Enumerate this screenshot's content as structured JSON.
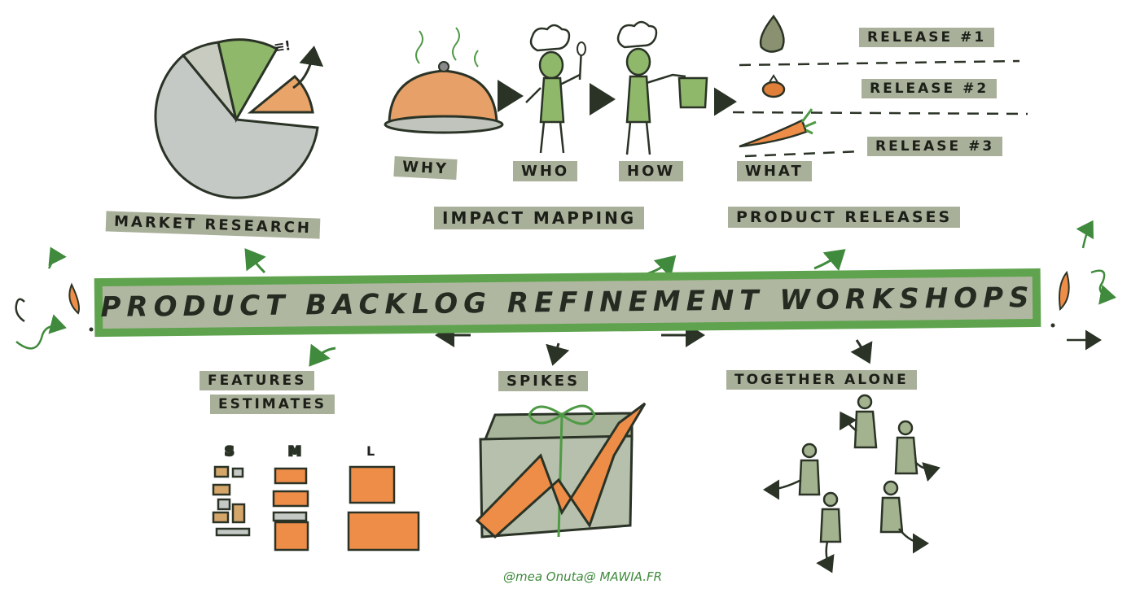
{
  "title": "PRODUCT BACKLOG REFINEMENT WORKSHOPS",
  "sections": {
    "market_research": "MARKET RESEARCH",
    "impact_mapping": "IMPACT MAPPING",
    "product_releases": "PRODUCT RELEASES",
    "features_estimates_line1": "FEATURES",
    "features_estimates_line2": "ESTIMATES",
    "spikes": "SPIKES",
    "together_alone": "TOGETHER ALONE"
  },
  "impact_steps": [
    "WHY",
    "WHO",
    "HOW",
    "WHAT"
  ],
  "releases": [
    "RELEASE #1",
    "RELEASE #2",
    "RELEASE #3"
  ],
  "sizes": [
    "S",
    "M",
    "L"
  ],
  "pie_annotation": "≡!",
  "credit": "@mea Onuta@ MAWIA.FR",
  "colors": {
    "banner_border": "#5fa34f",
    "banner_fill": "#b0b7a0",
    "label_bg": "#a9b09a",
    "orange": "#ee8d48",
    "green_accent": "#4f9a45",
    "gray": "#c4c9c5"
  }
}
